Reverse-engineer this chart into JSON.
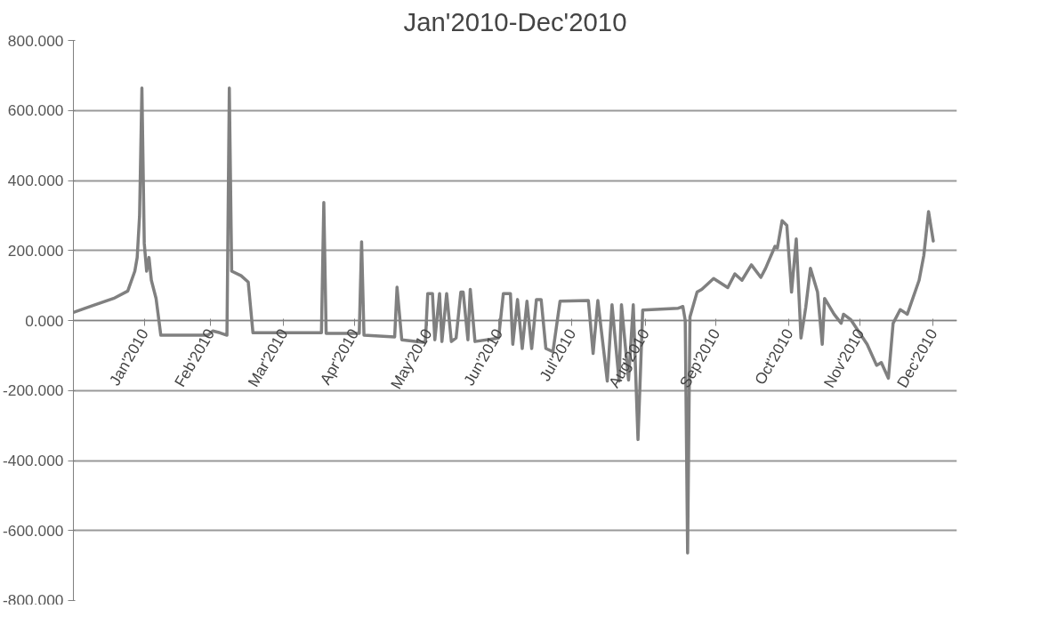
{
  "chart_data": {
    "type": "line",
    "title": "Jan'2010-Dec'2010",
    "x": [
      "2010-01-01",
      "2010-01-09",
      "2010-01-18",
      "2010-01-24",
      "2010-01-27",
      "2010-01-28",
      "2010-01-29",
      "2010-01-30",
      "2010-01-31",
      "2010-02-01",
      "2010-02-02",
      "2010-02-03",
      "2010-02-05",
      "2010-02-07",
      "2010-02-27",
      "2010-03-01",
      "2010-03-04",
      "2010-03-07",
      "2010-03-08",
      "2010-03-09",
      "2010-03-13",
      "2010-03-16",
      "2010-03-18",
      "2010-04-16",
      "2010-04-17",
      "2010-04-18",
      "2010-05-02",
      "2010-05-03",
      "2010-05-04",
      "2010-05-17",
      "2010-05-18",
      "2010-05-20",
      "2010-05-29",
      "2010-05-30",
      "2010-05-31",
      "2010-06-02",
      "2010-06-03",
      "2010-06-05",
      "2010-06-06",
      "2010-06-08",
      "2010-06-10",
      "2010-06-12",
      "2010-06-14",
      "2010-06-15",
      "2010-06-17",
      "2010-06-18",
      "2010-06-20",
      "2010-06-30",
      "2010-07-02",
      "2010-07-05",
      "2010-07-06",
      "2010-07-08",
      "2010-07-10",
      "2010-07-12",
      "2010-07-14",
      "2010-07-16",
      "2010-07-18",
      "2010-07-20",
      "2010-07-23",
      "2010-07-26",
      "2010-08-07",
      "2010-08-09",
      "2010-08-11",
      "2010-08-15",
      "2010-08-17",
      "2010-08-20",
      "2010-08-21",
      "2010-08-24",
      "2010-08-26",
      "2010-08-28",
      "2010-08-30",
      "2010-09-14",
      "2010-09-16",
      "2010-09-17",
      "2010-09-18",
      "2010-09-19",
      "2010-09-22",
      "2010-09-24",
      "2010-09-29",
      "2010-10-05",
      "2010-10-08",
      "2010-10-11",
      "2010-10-15",
      "2010-10-19",
      "2010-10-21",
      "2010-10-25",
      "2010-10-26",
      "2010-10-28",
      "2010-10-30",
      "2010-11-01",
      "2010-11-03",
      "2010-11-05",
      "2010-11-07",
      "2010-11-09",
      "2010-11-12",
      "2010-11-14",
      "2010-11-15",
      "2010-11-19",
      "2010-11-22",
      "2010-11-23",
      "2010-11-26",
      "2010-12-03",
      "2010-12-07",
      "2010-12-09",
      "2010-12-12",
      "2010-12-14",
      "2010-12-17",
      "2010-12-20",
      "2010-12-25",
      "2010-12-27",
      "2010-12-29",
      "2010-12-31"
    ],
    "series": [
      {
        "color": "#808080",
        "values": [
          23,
          42,
          63,
          84,
          141,
          180,
          298,
          664,
          220,
          141,
          180,
          115,
          63,
          -42,
          -42,
          -30,
          -35,
          -42,
          664,
          141,
          128,
          110,
          -35,
          -35,
          337,
          -37,
          -37,
          225,
          -42,
          -47,
          95,
          -55,
          -62,
          -60,
          77,
          77,
          -55,
          77,
          -60,
          77,
          -60,
          -50,
          81,
          81,
          -55,
          89,
          -60,
          -50,
          77,
          77,
          -68,
          60,
          -80,
          55,
          -80,
          60,
          60,
          -80,
          -89,
          55,
          57,
          -94,
          57,
          -173,
          45,
          -173,
          45,
          -170,
          45,
          -340,
          30,
          35,
          40,
          0,
          -664,
          10,
          81,
          89,
          120,
          94,
          133,
          115,
          159,
          123,
          149,
          212,
          207,
          285,
          272,
          81,
          233,
          -50,
          37,
          149,
          81,
          -68,
          63,
          18,
          -8,
          18,
          3,
          -68,
          -128,
          -120,
          -165,
          -8,
          31,
          18,
          115,
          186,
          311,
          227
        ]
      }
    ],
    "xlim": [
      "2010-01-01",
      "2011-01-10"
    ],
    "xticks": [
      {
        "value": "2010-01-31",
        "label": "Jan'2010"
      },
      {
        "value": "2010-02-28",
        "label": "Feb'2010"
      },
      {
        "value": "2010-03-31",
        "label": "Mar'2010"
      },
      {
        "value": "2010-04-30",
        "label": "Apr'2010"
      },
      {
        "value": "2010-05-31",
        "label": "May'2010"
      },
      {
        "value": "2010-06-30",
        "label": "Jun'2010"
      },
      {
        "value": "2010-07-31",
        "label": "Jul'2010"
      },
      {
        "value": "2010-08-31",
        "label": "Aug'2010"
      },
      {
        "value": "2010-09-30",
        "label": "Sep'2010"
      },
      {
        "value": "2010-10-31",
        "label": "Oct'2010"
      },
      {
        "value": "2010-11-30",
        "label": "Nov'2010"
      },
      {
        "value": "2010-12-31",
        "label": "Dec'2010"
      }
    ],
    "ylim": [
      -800,
      800
    ],
    "yticks": [
      {
        "value": -800,
        "label": "-800.000"
      },
      {
        "value": -600,
        "label": "-600.000"
      },
      {
        "value": -400,
        "label": "-400.000"
      },
      {
        "value": -200,
        "label": "-200.000"
      },
      {
        "value": 0,
        "label": "0.000"
      },
      {
        "value": 200,
        "label": "200.000"
      },
      {
        "value": 400,
        "label": "400.000"
      },
      {
        "value": 600,
        "label": "600.000"
      },
      {
        "value": 800,
        "label": "800.000"
      }
    ],
    "grid": "y",
    "line_style": "solid",
    "marker": "none"
  }
}
